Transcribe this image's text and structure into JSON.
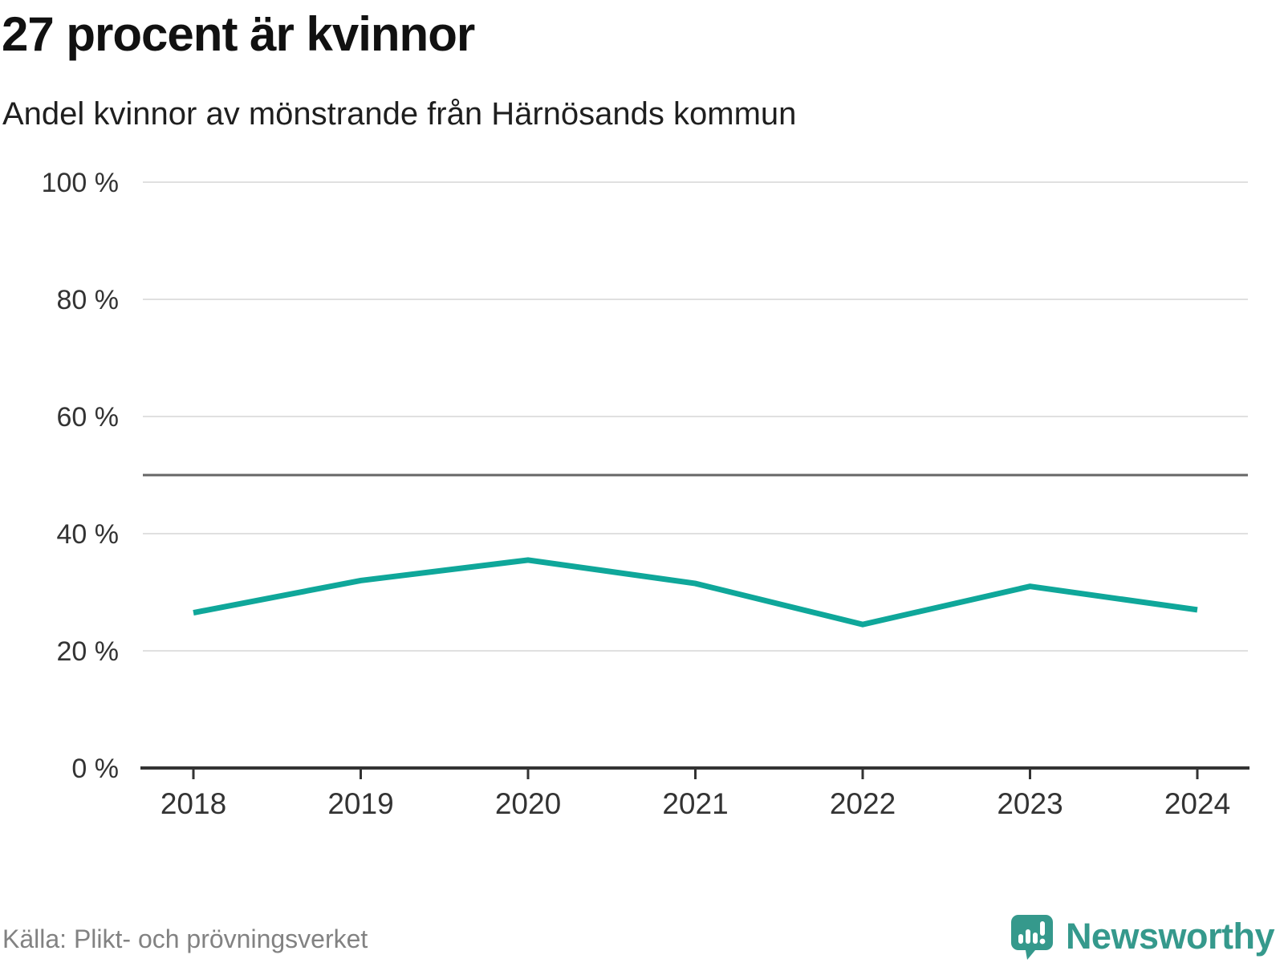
{
  "header": {
    "title": "27 procent är kvinnor",
    "subtitle": "Andel kvinnor av mönstrande från Härnösands kommun"
  },
  "chart_data": {
    "type": "line",
    "title": "27 procent är kvinnor",
    "subtitle": "Andel kvinnor av mönstrande från Härnösands kommun",
    "categories": [
      "2018",
      "2019",
      "2020",
      "2021",
      "2022",
      "2023",
      "2024"
    ],
    "series": [
      {
        "name": "Andel kvinnor av mönstrande",
        "values": [
          26.5,
          32,
          35.5,
          31.5,
          24.5,
          31,
          27
        ]
      }
    ],
    "ylim": [
      0,
      100
    ],
    "yticks": [
      {
        "value": 0,
        "label": "0 %"
      },
      {
        "value": 20,
        "label": "20 %"
      },
      {
        "value": 40,
        "label": "40 %"
      },
      {
        "value": 60,
        "label": "60 %"
      },
      {
        "value": 80,
        "label": "80 %"
      },
      {
        "value": 100,
        "label": "100 %"
      }
    ],
    "reference_line": {
      "value": 50
    },
    "grid": true,
    "legend": "none",
    "xlabel": "",
    "ylabel": ""
  },
  "footer": {
    "source": "Källa: Plikt- och prövningsverket",
    "brand": "Newsworthy"
  },
  "colors": {
    "line": "#0fa79a",
    "grid": "#e0e0e0",
    "axis": "#333333",
    "reference_line": "#666666",
    "tick_text": "#333333",
    "title_text": "#111111",
    "source_text": "#828282",
    "brand_teal": "#35998c"
  }
}
